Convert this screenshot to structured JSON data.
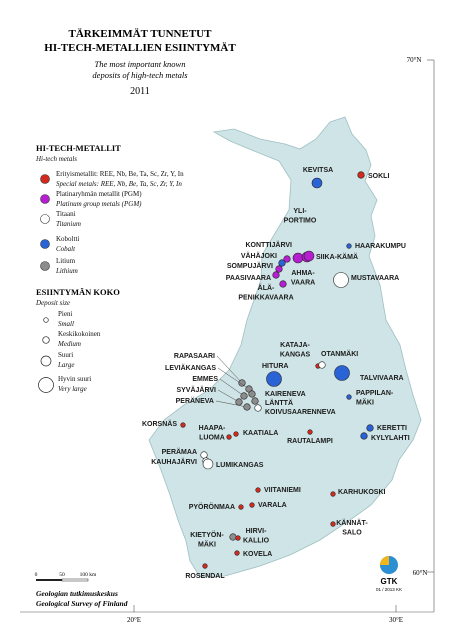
{
  "title": {
    "fi": [
      "TÄRKEIMMÄT TUNNETUT",
      "HI-TECH-METALLIEN ESIINTYMÄT"
    ],
    "en": [
      "The most important known",
      "deposits of high-tech metals"
    ],
    "year": "2011"
  },
  "legend": {
    "metals_title": "HI-TECH-METALLIT",
    "metals_subtitle": "Hi-tech metals",
    "metals": [
      {
        "fi": "Erityismetallit: REE, Nb, Be, Ta, Sc, Zr, Y, In",
        "en": "Special metals: REE, Nb, Be, Ta, Sc, Zr, Y, In",
        "color": "#d42a1e"
      },
      {
        "fi": "Platinaryhmän metallit (PGM)",
        "en": "Platinum group metals (PGM)",
        "color": "#b51fd1"
      },
      {
        "fi": "Titaani",
        "en": "Titanium",
        "color": "#ffffff"
      },
      {
        "fi": "Koboltti",
        "en": "Cobalt",
        "color": "#2a63d6"
      },
      {
        "fi": "Litium",
        "en": "Lithium",
        "color": "#8c8c8c"
      }
    ],
    "size_title": "ESIINTYMÄN KOKO",
    "size_subtitle": "Deposit size",
    "sizes": [
      {
        "fi": "Pieni",
        "en": "Small"
      },
      {
        "fi": "Keskikokoinen",
        "en": "Medium"
      },
      {
        "fi": "Suuri",
        "en": "Large"
      },
      {
        "fi": "Hyvin suuri",
        "en": "Very large"
      }
    ]
  },
  "deposits": [
    {
      "lines": [
        "KEVITSA"
      ],
      "metal": 3,
      "size": 2
    },
    {
      "lines": [
        "SOKLI"
      ],
      "metal": 0,
      "size": 1
    },
    {
      "lines": [
        "YLI-",
        "PORTIMO"
      ],
      "metal": 1,
      "size": 2
    },
    {
      "lines": [
        "KONTTIJÄRVI"
      ],
      "metal": 1,
      "size": 1
    },
    {
      "lines": [
        "AHMA-",
        "VAARA"
      ],
      "metal": 1,
      "size": 2
    },
    {
      "lines": [
        "SIIKA-KÄMÄ"
      ],
      "metal": 1,
      "size": 2
    },
    {
      "lines": [
        "VÄHÄJOKI"
      ],
      "metal": 3,
      "size": 1
    },
    {
      "lines": [
        "SOMPUJÄRVI"
      ],
      "metal": 1,
      "size": 1
    },
    {
      "lines": [
        "PAASIVAARA"
      ],
      "metal": 1,
      "size": 1
    },
    {
      "lines": [
        "ÄLÄ-",
        "PENIKKAVAARA"
      ],
      "metal": 1,
      "size": 1
    },
    {
      "lines": [
        "HAARAKUMPU"
      ],
      "metal": 3,
      "size": 0
    },
    {
      "lines": [
        "MUSTAVAARA"
      ],
      "metal": 2,
      "size": 3
    },
    {
      "lines": [
        "RAPASAARI"
      ],
      "metal": 4,
      "size": 1
    },
    {
      "lines": [
        "LEVIÄKANGAS"
      ],
      "metal": 4,
      "size": 1
    },
    {
      "lines": [
        "EMMES"
      ],
      "metal": 4,
      "size": 1
    },
    {
      "lines": [
        "SYVÄJÄRVI"
      ],
      "metal": 4,
      "size": 1
    },
    {
      "lines": [
        "PERÄNEVA"
      ],
      "metal": 4,
      "size": 1
    },
    {
      "lines": [
        "HITURA"
      ],
      "metal": 3,
      "size": 3
    },
    {
      "lines": [
        "KATAJA-",
        "KANGAS"
      ],
      "metal": 0,
      "size": 0
    },
    {
      "lines": [
        "OTANMÄKI"
      ],
      "metal": 2,
      "size": 1
    },
    {
      "lines": [
        "TALVIVAARA"
      ],
      "metal": 3,
      "size": 3
    },
    {
      "lines": [
        "KAIRENEVA"
      ],
      "metal": 4,
      "size": 1
    },
    {
      "lines": [
        "LÄNTTÄ"
      ],
      "metal": 4,
      "size": 1
    },
    {
      "lines": [
        "KOIVUSAARENNEVA"
      ],
      "metal": 2,
      "size": 1
    },
    {
      "lines": [
        "PAPPILAN-",
        "MÄKI"
      ],
      "metal": 3,
      "size": 0
    },
    {
      "lines": [
        "KORSNÄS"
      ],
      "metal": 0,
      "size": 0
    },
    {
      "lines": [
        "HAAPA-",
        "LUOMA"
      ],
      "metal": 0,
      "size": 0
    },
    {
      "lines": [
        "KAATIALA"
      ],
      "metal": 0,
      "size": 0
    },
    {
      "lines": [
        "RAUTALAMPI"
      ],
      "metal": 0,
      "size": 0
    },
    {
      "lines": [
        "KERETTI"
      ],
      "metal": 3,
      "size": 1
    },
    {
      "lines": [
        "KYLYLAHTI"
      ],
      "metal": 3,
      "size": 1
    },
    {
      "lines": [
        "PERÄMAA"
      ],
      "metal": 2,
      "size": 1
    },
    {
      "lines": [
        "KAUHAJÄRVI"
      ],
      "metal": 2,
      "size": 1
    },
    {
      "lines": [
        "LUMIKANGAS"
      ],
      "metal": 2,
      "size": 2
    },
    {
      "lines": [
        "VIITANIEMI"
      ],
      "metal": 0,
      "size": 0
    },
    {
      "lines": [
        "KARHUKOSKI"
      ],
      "metal": 0,
      "size": 0
    },
    {
      "lines": [
        "PYÖRÖNMAA"
      ],
      "metal": 0,
      "size": 0
    },
    {
      "lines": [
        "VARALA"
      ],
      "metal": 0,
      "size": 0
    },
    {
      "lines": [
        "KÄNNÄT-",
        "SALO"
      ],
      "metal": 0,
      "size": 0
    },
    {
      "lines": [
        "KIETYÖN-",
        "MÄKI"
      ],
      "metal": 4,
      "size": 1
    },
    {
      "lines": [
        "HIRVI-",
        "KALLIO"
      ],
      "metal": 0,
      "size": 0
    },
    {
      "lines": [
        "KOVELA"
      ],
      "metal": 0,
      "size": 0
    },
    {
      "lines": [
        "ROSENDAL"
      ],
      "metal": 0,
      "size": 0
    }
  ],
  "coordinates": {
    "north_top": "70°N",
    "north_bottom": "60°N",
    "east_left": "20°E",
    "east_right": "30°E"
  },
  "scale": {
    "zero": "0",
    "mid": "50",
    "end": "100 km"
  },
  "footer": [
    "Geologian tutkimuskeskus",
    "Geological Survey of Finland"
  ],
  "logo": {
    "text": "GTK",
    "code": "01 / 2013 KK"
  }
}
